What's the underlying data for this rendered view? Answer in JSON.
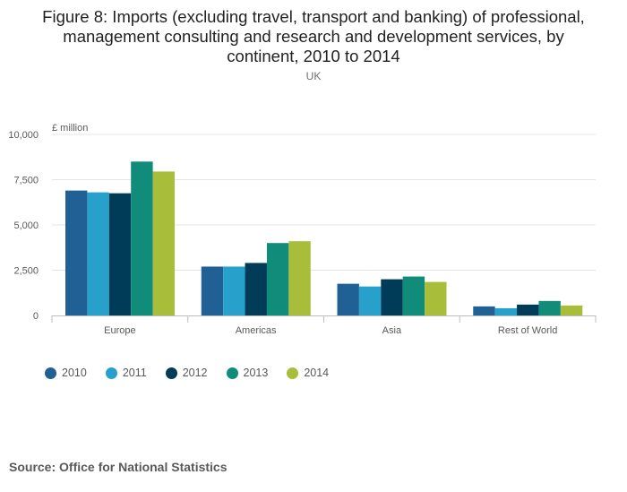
{
  "title_lines": [
    "Figure 8: Imports (excluding travel, transport and banking) of professional,",
    "management consulting and research and development services, by",
    "continent, 2010 to 2014"
  ],
  "subtitle": "UK",
  "source": "Source: Office for National Statistics",
  "chart_data": {
    "type": "bar",
    "title": "Figure 8: Imports (excluding travel, transport and banking) of professional, management consulting and research and development services, by continent, 2010 to 2014",
    "subtitle": "UK",
    "ylabel": "£ million",
    "xlabel": "",
    "ylim": [
      0,
      10000
    ],
    "yticks": [
      0,
      2500,
      5000,
      7500,
      10000
    ],
    "ytick_labels": [
      "0",
      "2,500",
      "5,000",
      "7,500",
      "10,000"
    ],
    "grid": true,
    "legend_position": "bottom-left",
    "categories": [
      "Europe",
      "Americas",
      "Asia",
      "Rest of World"
    ],
    "series": [
      {
        "name": "2010",
        "color": "#206095",
        "values": [
          6900,
          2700,
          1750,
          500
        ]
      },
      {
        "name": "2011",
        "color": "#27a0cc",
        "values": [
          6800,
          2700,
          1600,
          400
        ]
      },
      {
        "name": "2012",
        "color": "#003c57",
        "values": [
          6750,
          2900,
          2000,
          600
        ]
      },
      {
        "name": "2013",
        "color": "#118c7b",
        "values": [
          8500,
          4000,
          2150,
          800
        ]
      },
      {
        "name": "2014",
        "color": "#a8bd3a",
        "values": [
          7950,
          4100,
          1850,
          550
        ]
      }
    ]
  }
}
